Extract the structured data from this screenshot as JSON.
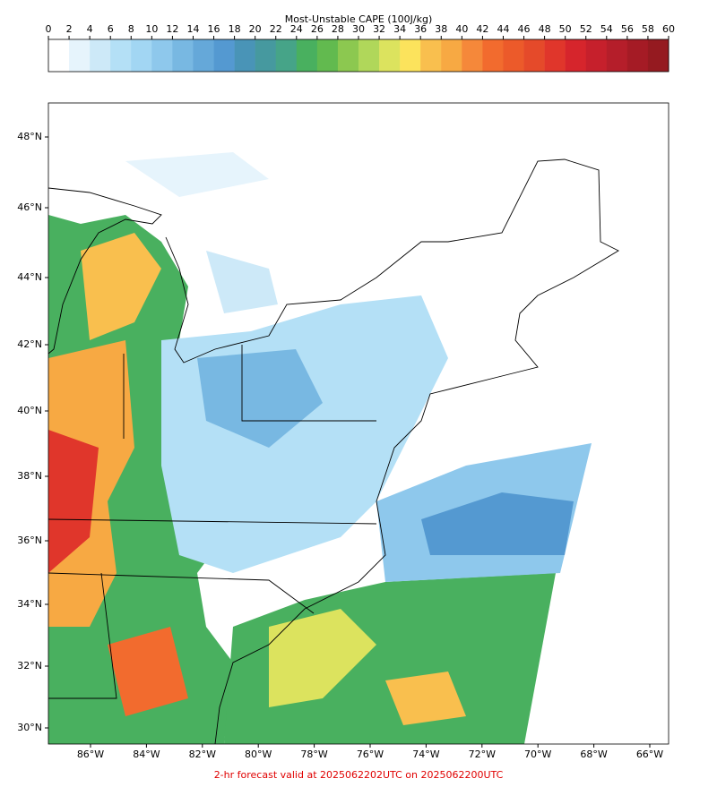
{
  "colorbar": {
    "title": "Most-Unstable CAPE (100J/kg)",
    "ticks": [
      0,
      2,
      4,
      6,
      8,
      10,
      12,
      14,
      16,
      18,
      20,
      22,
      24,
      26,
      28,
      30,
      32,
      34,
      36,
      38,
      40,
      42,
      44,
      46,
      48,
      50,
      52,
      54,
      56,
      58,
      60
    ],
    "colors": [
      "#ffffff",
      "#e6f4fc",
      "#cde9f8",
      "#b4e0f6",
      "#a2d6f3",
      "#8ec8ec",
      "#78b8e2",
      "#65a8d9",
      "#5499d1",
      "#4994b7",
      "#46999f",
      "#46a488",
      "#49b05f",
      "#62ba4f",
      "#8cc850",
      "#b0d75a",
      "#dce35e",
      "#fce35c",
      "#f9bf4e",
      "#f7a943",
      "#f5883a",
      "#f26b2e",
      "#ec5a2a",
      "#e54a2a",
      "#e0362b",
      "#d6252c",
      "#c6202c",
      "#b51e2a",
      "#a51b25",
      "#951a20"
    ]
  },
  "map": {
    "lat_labels": [
      "48°N",
      "46°N",
      "44°N",
      "42°N",
      "40°N",
      "38°N",
      "36°N",
      "34°N",
      "32°N",
      "30°N"
    ],
    "lon_labels": [
      "86°W",
      "84°W",
      "82°W",
      "80°W",
      "78°W",
      "76°W",
      "74°W",
      "72°W",
      "70°W",
      "68°W",
      "66°W"
    ]
  },
  "footer": "2-hr forecast valid at 2025062202UTC on 2025062200UTC"
}
